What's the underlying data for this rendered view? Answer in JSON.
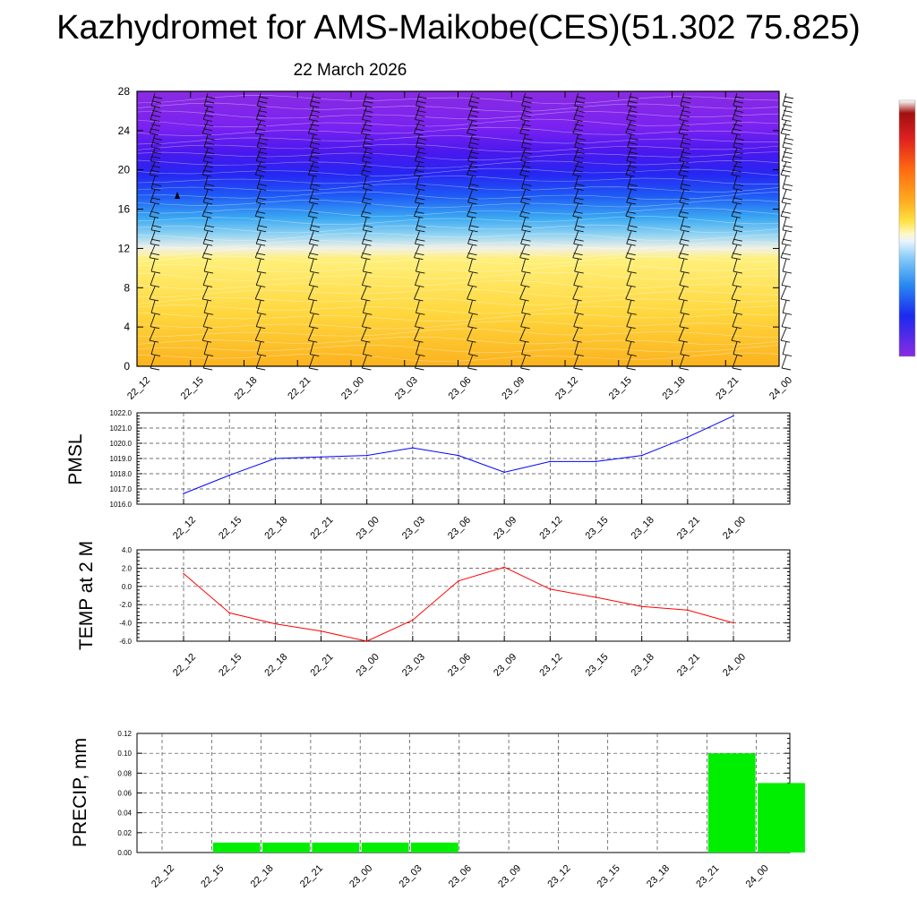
{
  "title": "Kazhydromet for AMS-Maikobe(CES)(51.302 75.825)",
  "subtitle": "22 March 2026",
  "time_labels": [
    "22_12",
    "22_15",
    "22_18",
    "22_21",
    "23_00",
    "23_03",
    "23_06",
    "23_09",
    "23_12",
    "23_15",
    "23_18",
    "23_21",
    "24_00"
  ],
  "colors": {
    "pmsl": "#0000ff",
    "temp": "#ff0000",
    "precip": "#00ee00"
  },
  "chart_data": [
    {
      "type": "heatmap",
      "title": "",
      "xlabel": "",
      "ylabel": "",
      "x": [
        "22_12",
        "22_15",
        "22_18",
        "22_21",
        "23_00",
        "23_03",
        "23_06",
        "23_09",
        "23_12",
        "23_15",
        "23_18",
        "23_21",
        "24_00"
      ],
      "ylim": [
        0,
        28
      ],
      "yticks": [
        0,
        4,
        8,
        12,
        16,
        20,
        24,
        28
      ],
      "colorbar": "purple-blue-cyan-white-yellow-orange-red",
      "overlay": "wind barbs"
    },
    {
      "type": "line",
      "ylabel": "PMSL",
      "x": [
        "22_12",
        "22_15",
        "22_18",
        "22_21",
        "23_00",
        "23_03",
        "23_06",
        "23_09",
        "23_12",
        "23_15",
        "23_18",
        "23_21",
        "24_00"
      ],
      "values": [
        1016.7,
        1017.9,
        1019.0,
        1019.1,
        1019.2,
        1019.7,
        1019.2,
        1018.1,
        1018.8,
        1018.8,
        1019.2,
        1020.4,
        1021.8
      ],
      "ylim": [
        1016.0,
        1022.0
      ],
      "yticks": [
        "1016.0",
        "1017.0",
        "1018.0",
        "1019.0",
        "1020.0",
        "1021.0",
        "1022.0"
      ],
      "grid": true
    },
    {
      "type": "line",
      "ylabel": "TEMP at 2 M",
      "x": [
        "22_12",
        "22_15",
        "22_18",
        "22_21",
        "23_00",
        "23_03",
        "23_06",
        "23_09",
        "23_12",
        "23_15",
        "23_18",
        "23_21",
        "24_00"
      ],
      "values": [
        1.4,
        -2.9,
        -4.1,
        -4.9,
        -6.0,
        -3.7,
        0.6,
        2.1,
        -0.3,
        -1.2,
        -2.2,
        -2.6,
        -4.0
      ],
      "ylim": [
        -6.0,
        4.0
      ],
      "yticks": [
        "-6.0",
        "-4.0",
        "-2.0",
        "0.0",
        "2.0",
        "4.0"
      ],
      "grid": true
    },
    {
      "type": "bar",
      "ylabel": "PRECIP, mm",
      "categories": [
        "22_12",
        "22_15",
        "22_18",
        "22_21",
        "23_00",
        "23_03",
        "23_06",
        "23_09",
        "23_12",
        "23_15",
        "23_18",
        "23_21",
        "24_00"
      ],
      "values": [
        0,
        0.01,
        0.01,
        0.01,
        0.01,
        0.01,
        0,
        0,
        0,
        0,
        0,
        0.1,
        0.07
      ],
      "ylim": [
        0,
        0.12
      ],
      "yticks": [
        "0.00",
        "0.02",
        "0.04",
        "0.06",
        "0.08",
        "0.10",
        "0.12"
      ],
      "grid": true
    }
  ]
}
